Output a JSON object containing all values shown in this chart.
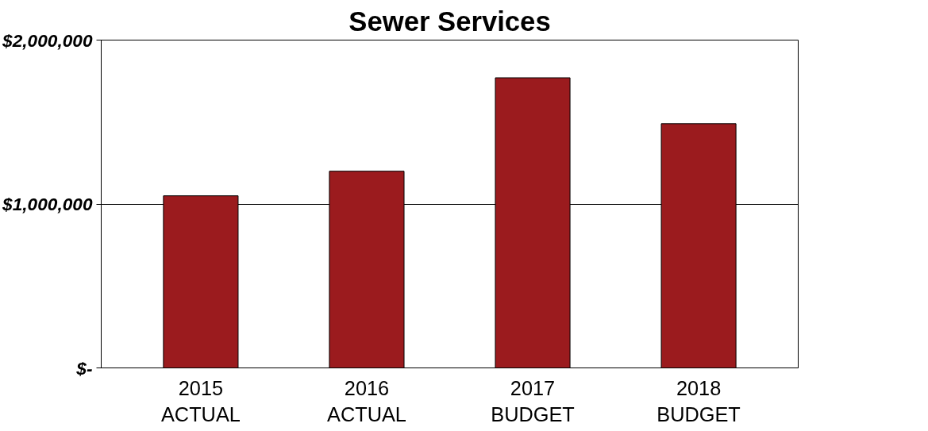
{
  "chart_data": {
    "type": "bar",
    "title": "Sewer Services",
    "categories": [
      "2015\nACTUAL",
      "2016\nACTUAL",
      "2017\nBUDGET",
      "2018\nBUDGET"
    ],
    "values": [
      1050000,
      1200000,
      1770000,
      1490000
    ],
    "color": "#9b1b1e",
    "ylim": [
      0,
      2000000
    ],
    "yticks": [
      {
        "value": 0,
        "label": "$-"
      },
      {
        "value": 1000000,
        "label": "$1,000,000"
      },
      {
        "value": 2000000,
        "label": "$2,000,000"
      }
    ],
    "grid": "y"
  }
}
